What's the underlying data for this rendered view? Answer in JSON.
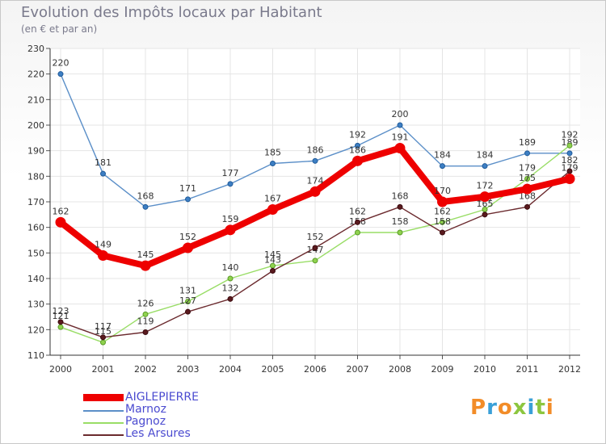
{
  "chart_data": {
    "type": "line",
    "title": "Evolution des Impôts locaux par Habitant",
    "subtitle": "(en € et par an)",
    "categories": [
      "2000",
      "2001",
      "2002",
      "2003",
      "2004",
      "2005",
      "2006",
      "2007",
      "2008",
      "2009",
      "2010",
      "2011",
      "2012"
    ],
    "ylim": [
      110,
      230
    ],
    "yticks": [
      110,
      120,
      130,
      140,
      150,
      160,
      170,
      180,
      190,
      200,
      210,
      220,
      230
    ],
    "grid": true,
    "series": [
      {
        "name": "Marnoz",
        "color": "#5b8fc8",
        "values": [
          220,
          181,
          168,
          171,
          177,
          185,
          186,
          192,
          200,
          184,
          184,
          189,
          189
        ],
        "labels": [
          "220",
          "181",
          "168",
          "171",
          "177",
          "185",
          "186",
          "192",
          "200",
          "184",
          "184",
          "189",
          "189"
        ]
      },
      {
        "name": "Pagnoz",
        "color": "#99dd66",
        "values": [
          121,
          115,
          126,
          131,
          140,
          145,
          147,
          158,
          158,
          162,
          167,
          179,
          192
        ],
        "labels": [
          "121",
          "115",
          "126",
          "131",
          "140",
          "145",
          "147",
          "158",
          "158",
          "162",
          "167",
          "179",
          "192"
        ]
      },
      {
        "name": "Les Arsures",
        "color": "#6b2a2e",
        "values": [
          123,
          117,
          119,
          127,
          132,
          143,
          152,
          162,
          168,
          158,
          165,
          168,
          182
        ],
        "labels": [
          "123",
          "117",
          "119",
          "127",
          "132",
          "143",
          "152",
          "162",
          "168",
          "158",
          "165",
          "168",
          "182"
        ]
      },
      {
        "name": "AIGLEPIERRE",
        "color": "#ee0000",
        "values": [
          162,
          149,
          145,
          152,
          159,
          167,
          174,
          186,
          191,
          170,
          172,
          175,
          179
        ],
        "labels": [
          "162",
          "149",
          "145",
          "152",
          "159",
          "167",
          "174",
          "186",
          "191",
          "170",
          "172",
          "175",
          "179"
        ]
      }
    ],
    "legend": {
      "position": "bottom-left",
      "order": [
        "AIGLEPIERRE",
        "Marnoz",
        "Pagnoz",
        "Les Arsures"
      ]
    }
  },
  "branding": {
    "logo_text": "Proxiti"
  }
}
